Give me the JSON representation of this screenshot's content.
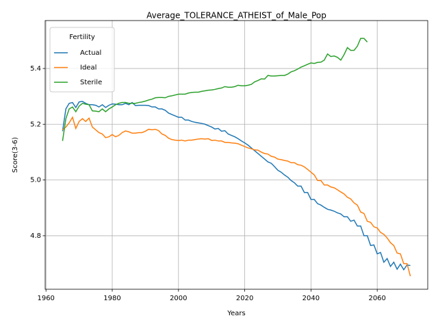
{
  "chart_data": {
    "type": "line",
    "title": "Average_TOLERANCE_ATHEIST_of_Male_Pop",
    "xlabel": "Years",
    "ylabel": "Score(3-6)",
    "x": [
      1965,
      1966,
      1967,
      1968,
      1969,
      1970,
      1971,
      1972,
      1973,
      1974,
      1975,
      1976,
      1977,
      1978,
      1979,
      1980,
      1981,
      1982,
      1983,
      1984,
      1985,
      1986,
      1987,
      1988,
      1989,
      1990,
      1991,
      1992,
      1993,
      1994,
      1995,
      1996,
      1997,
      1998,
      1999,
      2000,
      2001,
      2002,
      2003,
      2004,
      2005,
      2006,
      2007,
      2008,
      2009,
      2010,
      2011,
      2012,
      2013,
      2014,
      2015,
      2016,
      2017,
      2018,
      2019,
      2020,
      2021,
      2022,
      2023,
      2024,
      2025,
      2026,
      2027,
      2028,
      2029,
      2030,
      2031,
      2032,
      2033,
      2034,
      2035,
      2036,
      2037,
      2038,
      2039,
      2040,
      2041,
      2042,
      2043,
      2044,
      2045,
      2046,
      2047,
      2048,
      2049,
      2050,
      2051,
      2052,
      2053,
      2054,
      2055,
      2056,
      2057,
      2058,
      2059,
      2060,
      2061,
      2062,
      2063,
      2064,
      2065,
      2066,
      2067,
      2068,
      2069,
      2070
    ],
    "series": [
      {
        "name": "Actual",
        "color": "#1f77b4",
        "values": [
          5.175,
          5.255,
          5.275,
          5.278,
          5.26,
          5.28,
          5.282,
          5.275,
          5.27,
          5.27,
          5.268,
          5.262,
          5.27,
          5.26,
          5.268,
          5.273,
          5.272,
          5.27,
          5.27,
          5.275,
          5.27,
          5.278,
          5.267,
          5.268,
          5.268,
          5.268,
          5.267,
          5.262,
          5.262,
          5.255,
          5.255,
          5.25,
          5.24,
          5.235,
          5.23,
          5.225,
          5.225,
          5.215,
          5.215,
          5.21,
          5.207,
          5.205,
          5.203,
          5.2,
          5.195,
          5.19,
          5.183,
          5.185,
          5.175,
          5.177,
          5.165,
          5.16,
          5.155,
          5.148,
          5.14,
          5.133,
          5.125,
          5.115,
          5.105,
          5.095,
          5.085,
          5.075,
          5.065,
          5.06,
          5.048,
          5.035,
          5.028,
          5.018,
          5.01,
          4.998,
          4.99,
          4.978,
          4.978,
          4.955,
          4.955,
          4.93,
          4.93,
          4.915,
          4.91,
          4.902,
          4.895,
          4.892,
          4.888,
          4.882,
          4.878,
          4.868,
          4.868,
          4.852,
          4.856,
          4.835,
          4.835,
          4.8,
          4.8,
          4.765,
          4.767,
          4.735,
          4.74,
          4.705,
          4.718,
          4.69,
          4.705,
          4.68,
          4.698,
          4.678,
          4.695,
          4.693
        ]
      },
      {
        "name": "Ideal",
        "color": "#ff7f0e",
        "values": [
          5.18,
          5.19,
          5.205,
          5.225,
          5.185,
          5.21,
          5.22,
          5.21,
          5.222,
          5.19,
          5.18,
          5.17,
          5.165,
          5.152,
          5.155,
          5.163,
          5.155,
          5.16,
          5.17,
          5.176,
          5.173,
          5.168,
          5.168,
          5.17,
          5.17,
          5.175,
          5.182,
          5.18,
          5.182,
          5.177,
          5.165,
          5.16,
          5.15,
          5.145,
          5.143,
          5.142,
          5.143,
          5.14,
          5.143,
          5.143,
          5.145,
          5.147,
          5.148,
          5.147,
          5.148,
          5.142,
          5.143,
          5.14,
          5.14,
          5.135,
          5.135,
          5.133,
          5.132,
          5.13,
          5.125,
          5.12,
          5.115,
          5.112,
          5.108,
          5.107,
          5.1,
          5.095,
          5.093,
          5.085,
          5.082,
          5.075,
          5.073,
          5.07,
          5.068,
          5.062,
          5.062,
          5.055,
          5.053,
          5.047,
          5.038,
          5.028,
          5.018,
          4.998,
          4.998,
          4.982,
          4.982,
          4.975,
          4.972,
          4.965,
          4.957,
          4.95,
          4.938,
          4.932,
          4.918,
          4.91,
          4.885,
          4.88,
          4.852,
          4.848,
          4.832,
          4.828,
          4.812,
          4.805,
          4.792,
          4.775,
          4.765,
          4.738,
          4.735,
          4.7,
          4.7,
          4.655
        ]
      },
      {
        "name": "Sterile",
        "color": "#2ca02c",
        "values": [
          5.14,
          5.22,
          5.255,
          5.262,
          5.245,
          5.265,
          5.275,
          5.272,
          5.27,
          5.248,
          5.247,
          5.245,
          5.255,
          5.245,
          5.255,
          5.262,
          5.27,
          5.275,
          5.278,
          5.278,
          5.275,
          5.275,
          5.275,
          5.278,
          5.28,
          5.283,
          5.287,
          5.29,
          5.295,
          5.296,
          5.296,
          5.295,
          5.3,
          5.302,
          5.305,
          5.308,
          5.308,
          5.308,
          5.312,
          5.314,
          5.315,
          5.315,
          5.318,
          5.32,
          5.322,
          5.323,
          5.325,
          5.328,
          5.33,
          5.335,
          5.333,
          5.333,
          5.335,
          5.34,
          5.338,
          5.338,
          5.34,
          5.343,
          5.352,
          5.357,
          5.363,
          5.362,
          5.375,
          5.373,
          5.373,
          5.374,
          5.375,
          5.375,
          5.38,
          5.388,
          5.392,
          5.398,
          5.405,
          5.41,
          5.415,
          5.42,
          5.418,
          5.422,
          5.423,
          5.43,
          5.452,
          5.443,
          5.445,
          5.44,
          5.43,
          5.45,
          5.475,
          5.465,
          5.465,
          5.48,
          5.508,
          5.508,
          5.495,
          null,
          null,
          null,
          null,
          null,
          null,
          null,
          null,
          null,
          null,
          null,
          null,
          null
        ]
      }
    ],
    "xlim": [
      1959.75,
      2075.25
    ],
    "xticks": [
      1960,
      1980,
      2000,
      2020,
      2040,
      2060
    ],
    "ylim": [
      4.608,
      5.572
    ],
    "yticks": [
      4.8,
      {
        "value": 5,
        "label": "5.0"
      },
      5.2,
      5.4
    ],
    "grid": true,
    "legend": {
      "title": "Fertility",
      "loc": "upper left"
    }
  }
}
